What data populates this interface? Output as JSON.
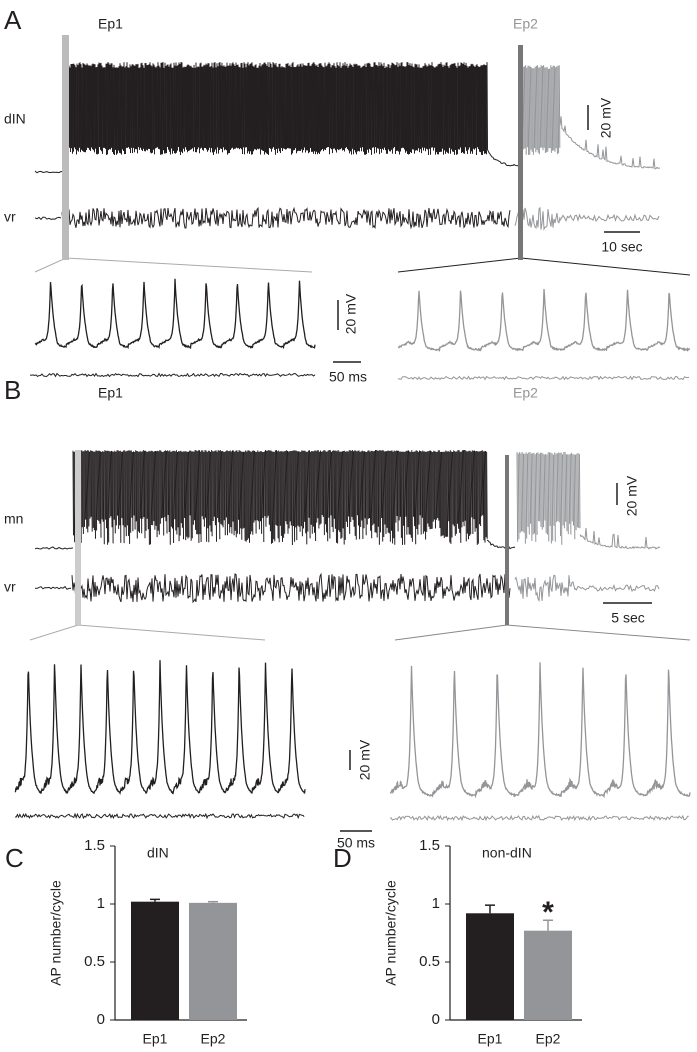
{
  "panels": {
    "A": {
      "label": "A",
      "ep1": "Ep1",
      "ep2": "Ep2",
      "trace1": "dIN",
      "trace2": "vr",
      "scale_v": "20 mV",
      "scale_t": "10 sec",
      "inset_scale_v": "20 mV",
      "inset_scale_t": "50 ms"
    },
    "B": {
      "label": "B",
      "ep1": "Ep1",
      "ep2": "Ep2",
      "trace1": "mn",
      "trace2": "vr",
      "scale_v": "20 mV",
      "scale_t": "5 sec",
      "inset_scale_v": "20 mV",
      "inset_scale_t": "50 ms"
    }
  },
  "chart_data": [
    {
      "type": "bar",
      "label": "C",
      "title": "dIN",
      "y_label": "AP number/cycle",
      "categories": [
        "Ep1",
        "Ep2"
      ],
      "values": [
        1.02,
        1.01
      ],
      "errors": [
        0.02,
        0.01
      ],
      "colors": [
        "#231f20",
        "#939598"
      ],
      "ylim": [
        0,
        1.5
      ],
      "yticks": [
        0,
        0.5,
        1,
        1.5
      ]
    },
    {
      "type": "bar",
      "label": "D",
      "title": "non-dIN",
      "y_label": "AP number/cycle",
      "categories": [
        "Ep1",
        "Ep2"
      ],
      "values": [
        0.92,
        0.77
      ],
      "errors": [
        0.07,
        0.09
      ],
      "colors": [
        "#231f20",
        "#939598"
      ],
      "ylim": [
        0,
        1.5
      ],
      "yticks": [
        0,
        0.5,
        1,
        1.5
      ],
      "annotation": "*"
    }
  ]
}
